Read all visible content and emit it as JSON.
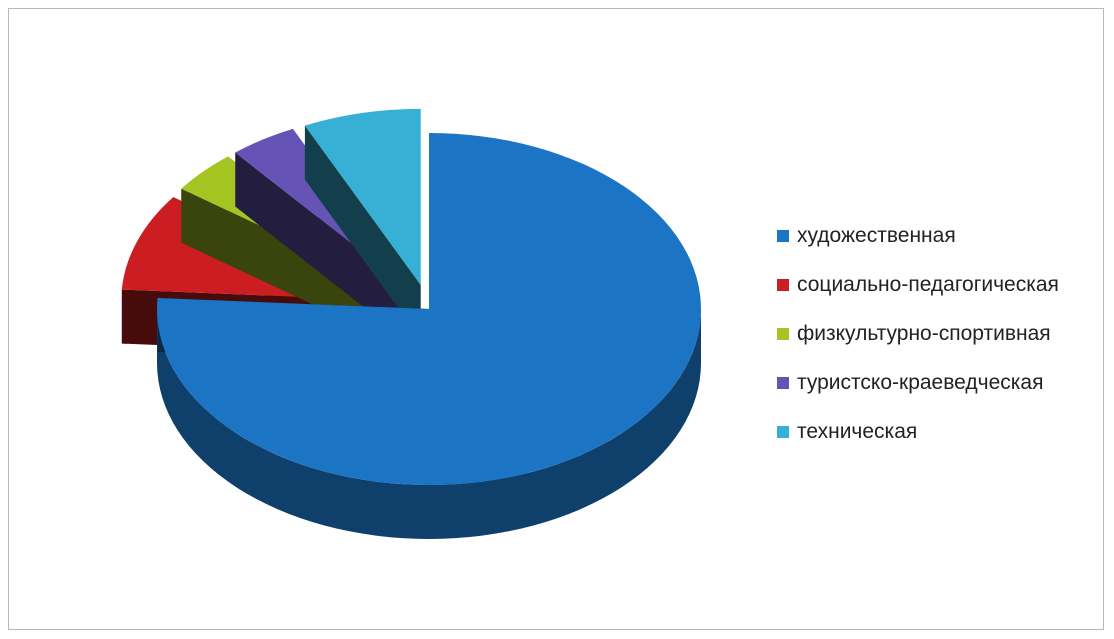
{
  "chart_data": {
    "type": "pie",
    "variant": "3d-exploded",
    "categories": [
      "художественная",
      "социально-педагогическая",
      "физкультурно-спортивная",
      "туристско-краеведческая",
      "техническая"
    ],
    "values": [
      76,
      9,
      4,
      4,
      7
    ],
    "colors": [
      "#1b74c4",
      "#cc1e22",
      "#a4c522",
      "#6553b5",
      "#36b1d5"
    ],
    "legend_position": "right",
    "data_labels": false,
    "title": ""
  }
}
